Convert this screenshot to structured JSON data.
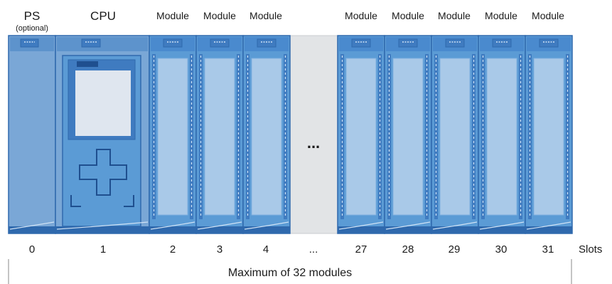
{
  "header": {
    "ps": {
      "name": "PS",
      "note": "(optional)"
    },
    "cpu": "CPU",
    "modules_left": [
      "Module",
      "Module",
      "Module"
    ],
    "modules_right": [
      "Module",
      "Module",
      "Module",
      "Module",
      "Module"
    ]
  },
  "gap": {
    "ellipsis": "..."
  },
  "slots": {
    "numbers": [
      "0",
      "1",
      "2",
      "3",
      "4",
      "...",
      "27",
      "28",
      "29",
      "30",
      "31"
    ],
    "caption": "Slots"
  },
  "footer": {
    "range_label": "Maximum of 32 modules"
  },
  "colors": {
    "ps_body": "#7aa7d6",
    "module_body": "#5b9bd5",
    "module_face": "#a9c9e8",
    "outline": "#2f69ad",
    "gap_fill": "#e2e4e6"
  }
}
